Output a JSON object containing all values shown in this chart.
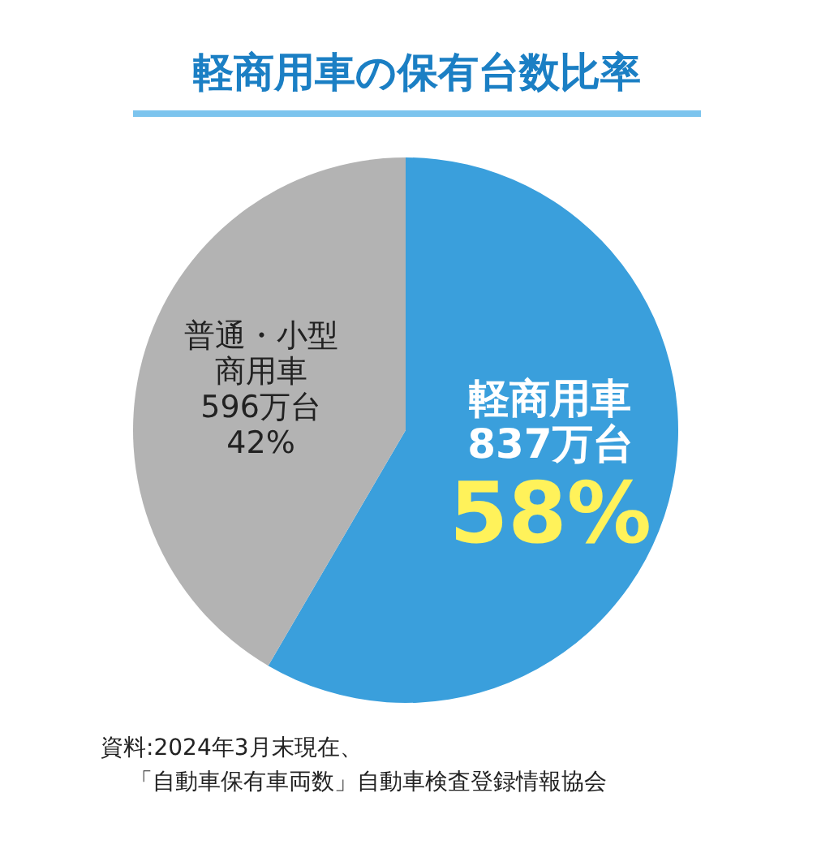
{
  "chart_data": {
    "type": "pie",
    "title": "軽商用車の保有台数比率",
    "categories": [
      "軽商用車",
      "普通・小型商用車"
    ],
    "values": [
      837,
      596
    ],
    "colors": [
      "#3a9fdc",
      "#b3b3b3"
    ],
    "value_labels": [
      "837万台\n58%",
      "596万台\n42%"
    ],
    "annotations": [
      "資料:2024年3月末現在、",
      "「自動車保有車両数」自動車検査登録情報協会"
    ]
  }
}
